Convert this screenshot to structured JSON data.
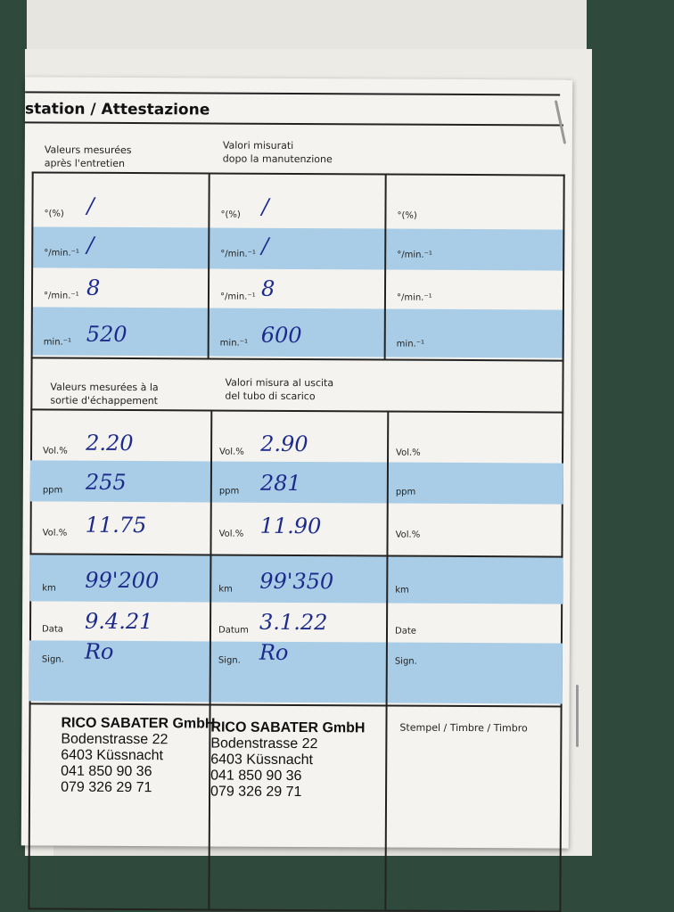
{
  "header": {
    "title": "station / Attestazione"
  },
  "section1": {
    "col1_header": "Valeurs mesurées\naprès l'entretien",
    "col2_header": "Valori misurati\ndopo la manutenzione",
    "rows": [
      {
        "unit1": "°(%)",
        "val1": "/",
        "unit2": "°(%)",
        "val2": "/",
        "unit3": "°(%)"
      },
      {
        "unit1": "°/min.⁻¹",
        "val1": "/",
        "unit2": "°/min.⁻¹",
        "val2": "/",
        "unit3": "°/min.⁻¹"
      },
      {
        "unit1": "°/min.⁻¹",
        "val1": "8",
        "unit2": "°/min.⁻¹",
        "val2": "8",
        "unit3": "°/min.⁻¹"
      },
      {
        "unit1": "min.⁻¹",
        "val1": "520",
        "unit2": "min.⁻¹",
        "val2": "600",
        "unit3": "min.⁻¹"
      }
    ]
  },
  "section2": {
    "col1_header": "Valeurs mesurées à la\nsortie d'échappement",
    "col2_header": "Valori misura al uscita\ndel tubo di scarico",
    "rows": [
      {
        "unit1": "Vol.%",
        "val1": "2.20",
        "unit2": "Vol.%",
        "val2": "2.90",
        "unit3": "Vol.%"
      },
      {
        "unit1": "ppm",
        "val1": "255",
        "unit2": "ppm",
        "val2": "281",
        "unit3": "ppm"
      },
      {
        "unit1": "Vol.%",
        "val1": "11.75",
        "unit2": "Vol.%",
        "val2": "11.90",
        "unit3": "Vol.%"
      },
      {
        "unit1": "km",
        "val1": "99'200",
        "unit2": "km",
        "val2": "99'350",
        "unit3": "km"
      },
      {
        "unit1": "Data",
        "val1": "9.4.21",
        "unit2": "Datum",
        "val2": "3.1.22",
        "unit3": "Date"
      },
      {
        "unit1": "Sign.",
        "val1": "Ro",
        "unit2": "Sign.",
        "val2": "Ro",
        "unit3": "Sign."
      }
    ]
  },
  "stamps": {
    "label3": "Stempel / Timbre / Timbro",
    "company": "RICO SABATER GmbH",
    "street": "Bodenstrasse 22",
    "city": "6403 Küssnacht",
    "phone1": "041 850 90 36",
    "phone2": "079 326 29 71"
  },
  "colors": {
    "band": "#a9cde6",
    "ink": "#1c2a8c",
    "background": "#2f4a3d"
  }
}
